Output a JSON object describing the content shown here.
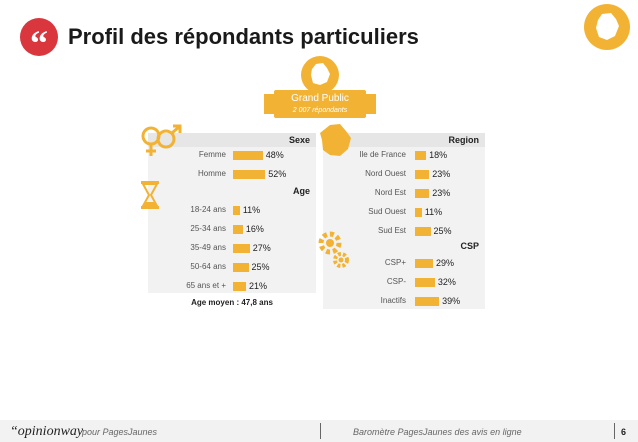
{
  "header": {
    "title": "Profil des répondants particuliers",
    "quote_glyph": "“"
  },
  "badge": {
    "line1": "Grand Public",
    "line2": "2 007 répondants"
  },
  "icons": {
    "gender": "gender-icon",
    "hourglass": "hourglass-icon",
    "france_map": "france-map-icon",
    "gears": "gears-icon",
    "france_top": "france-badge-icon"
  },
  "colors": {
    "accent": "#f2b335",
    "brand_red": "#d9363e",
    "panel": "#f2f2f2",
    "header": "#e6e6e6"
  },
  "chart_data": [
    {
      "type": "bar",
      "title": "Sexe",
      "categories": [
        "Femme",
        "Homme"
      ],
      "values": [
        48,
        52
      ],
      "labels": [
        "48%",
        "52%"
      ],
      "unit": "%"
    },
    {
      "type": "bar",
      "title": "Age",
      "categories": [
        "18-24 ans",
        "25-34 ans",
        "35-49 ans",
        "50-64 ans",
        "65 ans et +"
      ],
      "values": [
        11,
        16,
        27,
        25,
        21
      ],
      "labels": [
        "11%",
        "16%",
        "27%",
        "25%",
        "21%"
      ],
      "unit": "%",
      "note": "Age moyen : 47,8 ans"
    },
    {
      "type": "bar",
      "title": "Region",
      "categories": [
        "Ile de France",
        "Nord Ouest",
        "Nord Est",
        "Sud Ouest",
        "Sud Est"
      ],
      "values": [
        18,
        23,
        23,
        11,
        25
      ],
      "labels": [
        "18%",
        "23%",
        "23%",
        "11%",
        "25%"
      ],
      "unit": "%"
    },
    {
      "type": "bar",
      "title": "CSP",
      "categories": [
        "CSP+",
        "CSP-",
        "Inactifs"
      ],
      "values": [
        29,
        32,
        39
      ],
      "labels": [
        "29%",
        "32%",
        "39%"
      ],
      "unit": "%"
    }
  ],
  "footer": {
    "logo": "“opinionway",
    "pour": "pour  PagesJaunes",
    "barometre": "Baromètre PagesJaunes des avis en ligne",
    "page": "6"
  }
}
